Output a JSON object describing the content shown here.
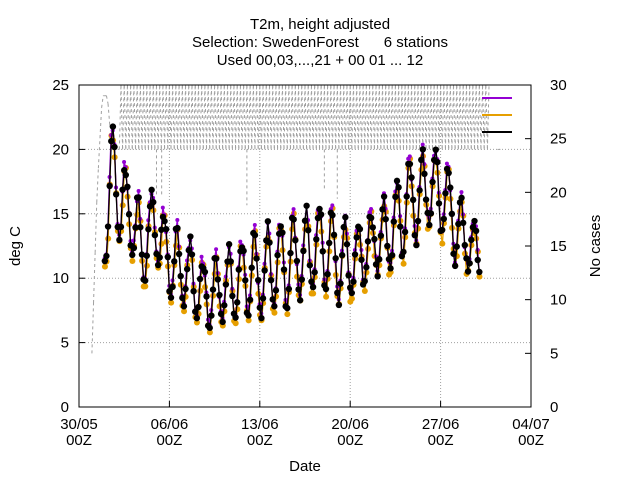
{
  "title_lines": [
    "T2m, height adjusted",
    "Selection: SwedenForest      6 stations",
    "Used 00,03,...,21 + 00 01 ... 12"
  ],
  "chart_data": {
    "type": "line",
    "xlabel": "Date",
    "ylabel": "deg C",
    "y2label": "No cases",
    "ylim": [
      0,
      25
    ],
    "y2lim": [
      0,
      30
    ],
    "y_ticks": [
      "0",
      "5",
      "10",
      "15",
      "20",
      "25"
    ],
    "y2_ticks": [
      "0",
      "5",
      "10",
      "15",
      "20",
      "25",
      "30"
    ],
    "x_ticks": [
      {
        "date": "30/05",
        "hour": "00Z"
      },
      {
        "date": "06/06",
        "hour": "00Z"
      },
      {
        "date": "13/06",
        "hour": "00Z"
      },
      {
        "date": "20/06",
        "hour": "00Z"
      },
      {
        "date": "27/06",
        "hour": "00Z"
      },
      {
        "date": "04/07",
        "hour": "00Z"
      }
    ],
    "xlim_days": [
      0,
      35
    ],
    "grid": true,
    "legend_placement": "top-right",
    "series_colors": {
      "purple": "#9400d3",
      "orange": "#e69f00",
      "black": "#000000",
      "cases": "#a0a0a0"
    },
    "legend": [
      {
        "color": "#9400d3"
      },
      {
        "color": "#e69f00"
      },
      {
        "color": "#000000"
      }
    ],
    "mean_curve": [
      [
        2.0,
        12.5
      ],
      [
        2.5,
        18.0
      ],
      [
        3.0,
        17.0
      ],
      [
        3.5,
        15.5
      ],
      [
        4.0,
        15.0
      ],
      [
        4.5,
        13.5
      ],
      [
        5.0,
        12.0
      ],
      [
        5.5,
        14.0
      ],
      [
        6.0,
        14.0
      ],
      [
        6.5,
        12.5
      ],
      [
        7.0,
        11.5
      ],
      [
        7.5,
        11.0
      ],
      [
        8.0,
        10.5
      ],
      [
        8.5,
        10.5
      ],
      [
        9.0,
        9.5
      ],
      [
        9.5,
        9.0
      ],
      [
        10.0,
        8.5
      ],
      [
        10.5,
        9.0
      ],
      [
        11.0,
        9.0
      ],
      [
        11.5,
        9.5
      ],
      [
        12.0,
        9.5
      ],
      [
        12.5,
        10.0
      ],
      [
        13.0,
        10.0
      ],
      [
        13.5,
        10.5
      ],
      [
        14.0,
        10.0
      ],
      [
        14.5,
        10.5
      ],
      [
        15.0,
        11.0
      ],
      [
        15.5,
        11.0
      ],
      [
        16.0,
        11.0
      ],
      [
        16.5,
        11.5
      ],
      [
        17.0,
        11.5
      ],
      [
        17.5,
        12.0
      ],
      [
        18.0,
        12.0
      ],
      [
        18.5,
        12.5
      ],
      [
        19.0,
        12.5
      ],
      [
        19.5,
        12.0
      ],
      [
        20.0,
        11.5
      ],
      [
        20.5,
        11.5
      ],
      [
        21.0,
        11.0
      ],
      [
        21.5,
        11.5
      ],
      [
        22.0,
        12.0
      ],
      [
        22.5,
        12.5
      ],
      [
        23.0,
        13.0
      ],
      [
        23.5,
        13.0
      ],
      [
        24.0,
        13.5
      ],
      [
        24.5,
        14.0
      ],
      [
        25.0,
        15.0
      ],
      [
        25.5,
        16.0
      ],
      [
        26.0,
        16.0
      ],
      [
        26.5,
        16.5
      ],
      [
        27.0,
        17.0
      ],
      [
        27.5,
        17.0
      ],
      [
        28.0,
        16.5
      ],
      [
        28.5,
        16.0
      ],
      [
        29.0,
        14.5
      ],
      [
        29.5,
        13.5
      ],
      [
        30.0,
        13.0
      ],
      [
        30.5,
        12.5
      ],
      [
        31.0,
        12.0
      ]
    ],
    "amplitude_curve": [
      [
        2.0,
        1.5
      ],
      [
        2.5,
        4.0
      ],
      [
        4.0,
        3.0
      ],
      [
        6.0,
        2.5
      ],
      [
        7.0,
        3.0
      ],
      [
        9.0,
        2.5
      ],
      [
        11.0,
        2.5
      ],
      [
        13.0,
        3.0
      ],
      [
        16.0,
        3.5
      ],
      [
        18.0,
        3.0
      ],
      [
        20.0,
        3.5
      ],
      [
        21.0,
        2.5
      ],
      [
        23.0,
        2.5
      ],
      [
        25.0,
        3.5
      ],
      [
        27.0,
        3.0
      ],
      [
        29.0,
        3.0
      ],
      [
        30.0,
        2.5
      ],
      [
        31.0,
        1.5
      ]
    ],
    "cases_curve": [
      [
        1.0,
        5.0
      ],
      [
        1.4,
        20.0
      ],
      [
        1.8,
        29.0
      ],
      [
        2.2,
        29.0
      ],
      [
        2.4,
        26.0
      ],
      [
        3.0,
        24.0
      ],
      [
        5.5,
        24.0
      ],
      [
        6.0,
        30.0
      ],
      [
        6.4,
        24.0
      ],
      [
        14.0,
        24.0
      ],
      [
        14.3,
        30.0
      ],
      [
        14.6,
        24.0
      ],
      [
        20.5,
        24.0
      ],
      [
        20.8,
        30.0
      ],
      [
        21.1,
        24.0
      ],
      [
        26.5,
        24.0
      ],
      [
        27.0,
        30.0
      ],
      [
        27.5,
        24.0
      ],
      [
        31.8,
        24.0
      ]
    ],
    "cases_drops": [
      [
        6.0,
        19.6
      ],
      [
        6.4,
        19.6
      ],
      [
        13.0,
        18.8
      ],
      [
        19.0,
        20.2
      ],
      [
        20.0,
        19.4
      ],
      [
        26.5,
        24.0
      ]
    ],
    "cases_last": [
      32.4,
      24.0
    ]
  }
}
